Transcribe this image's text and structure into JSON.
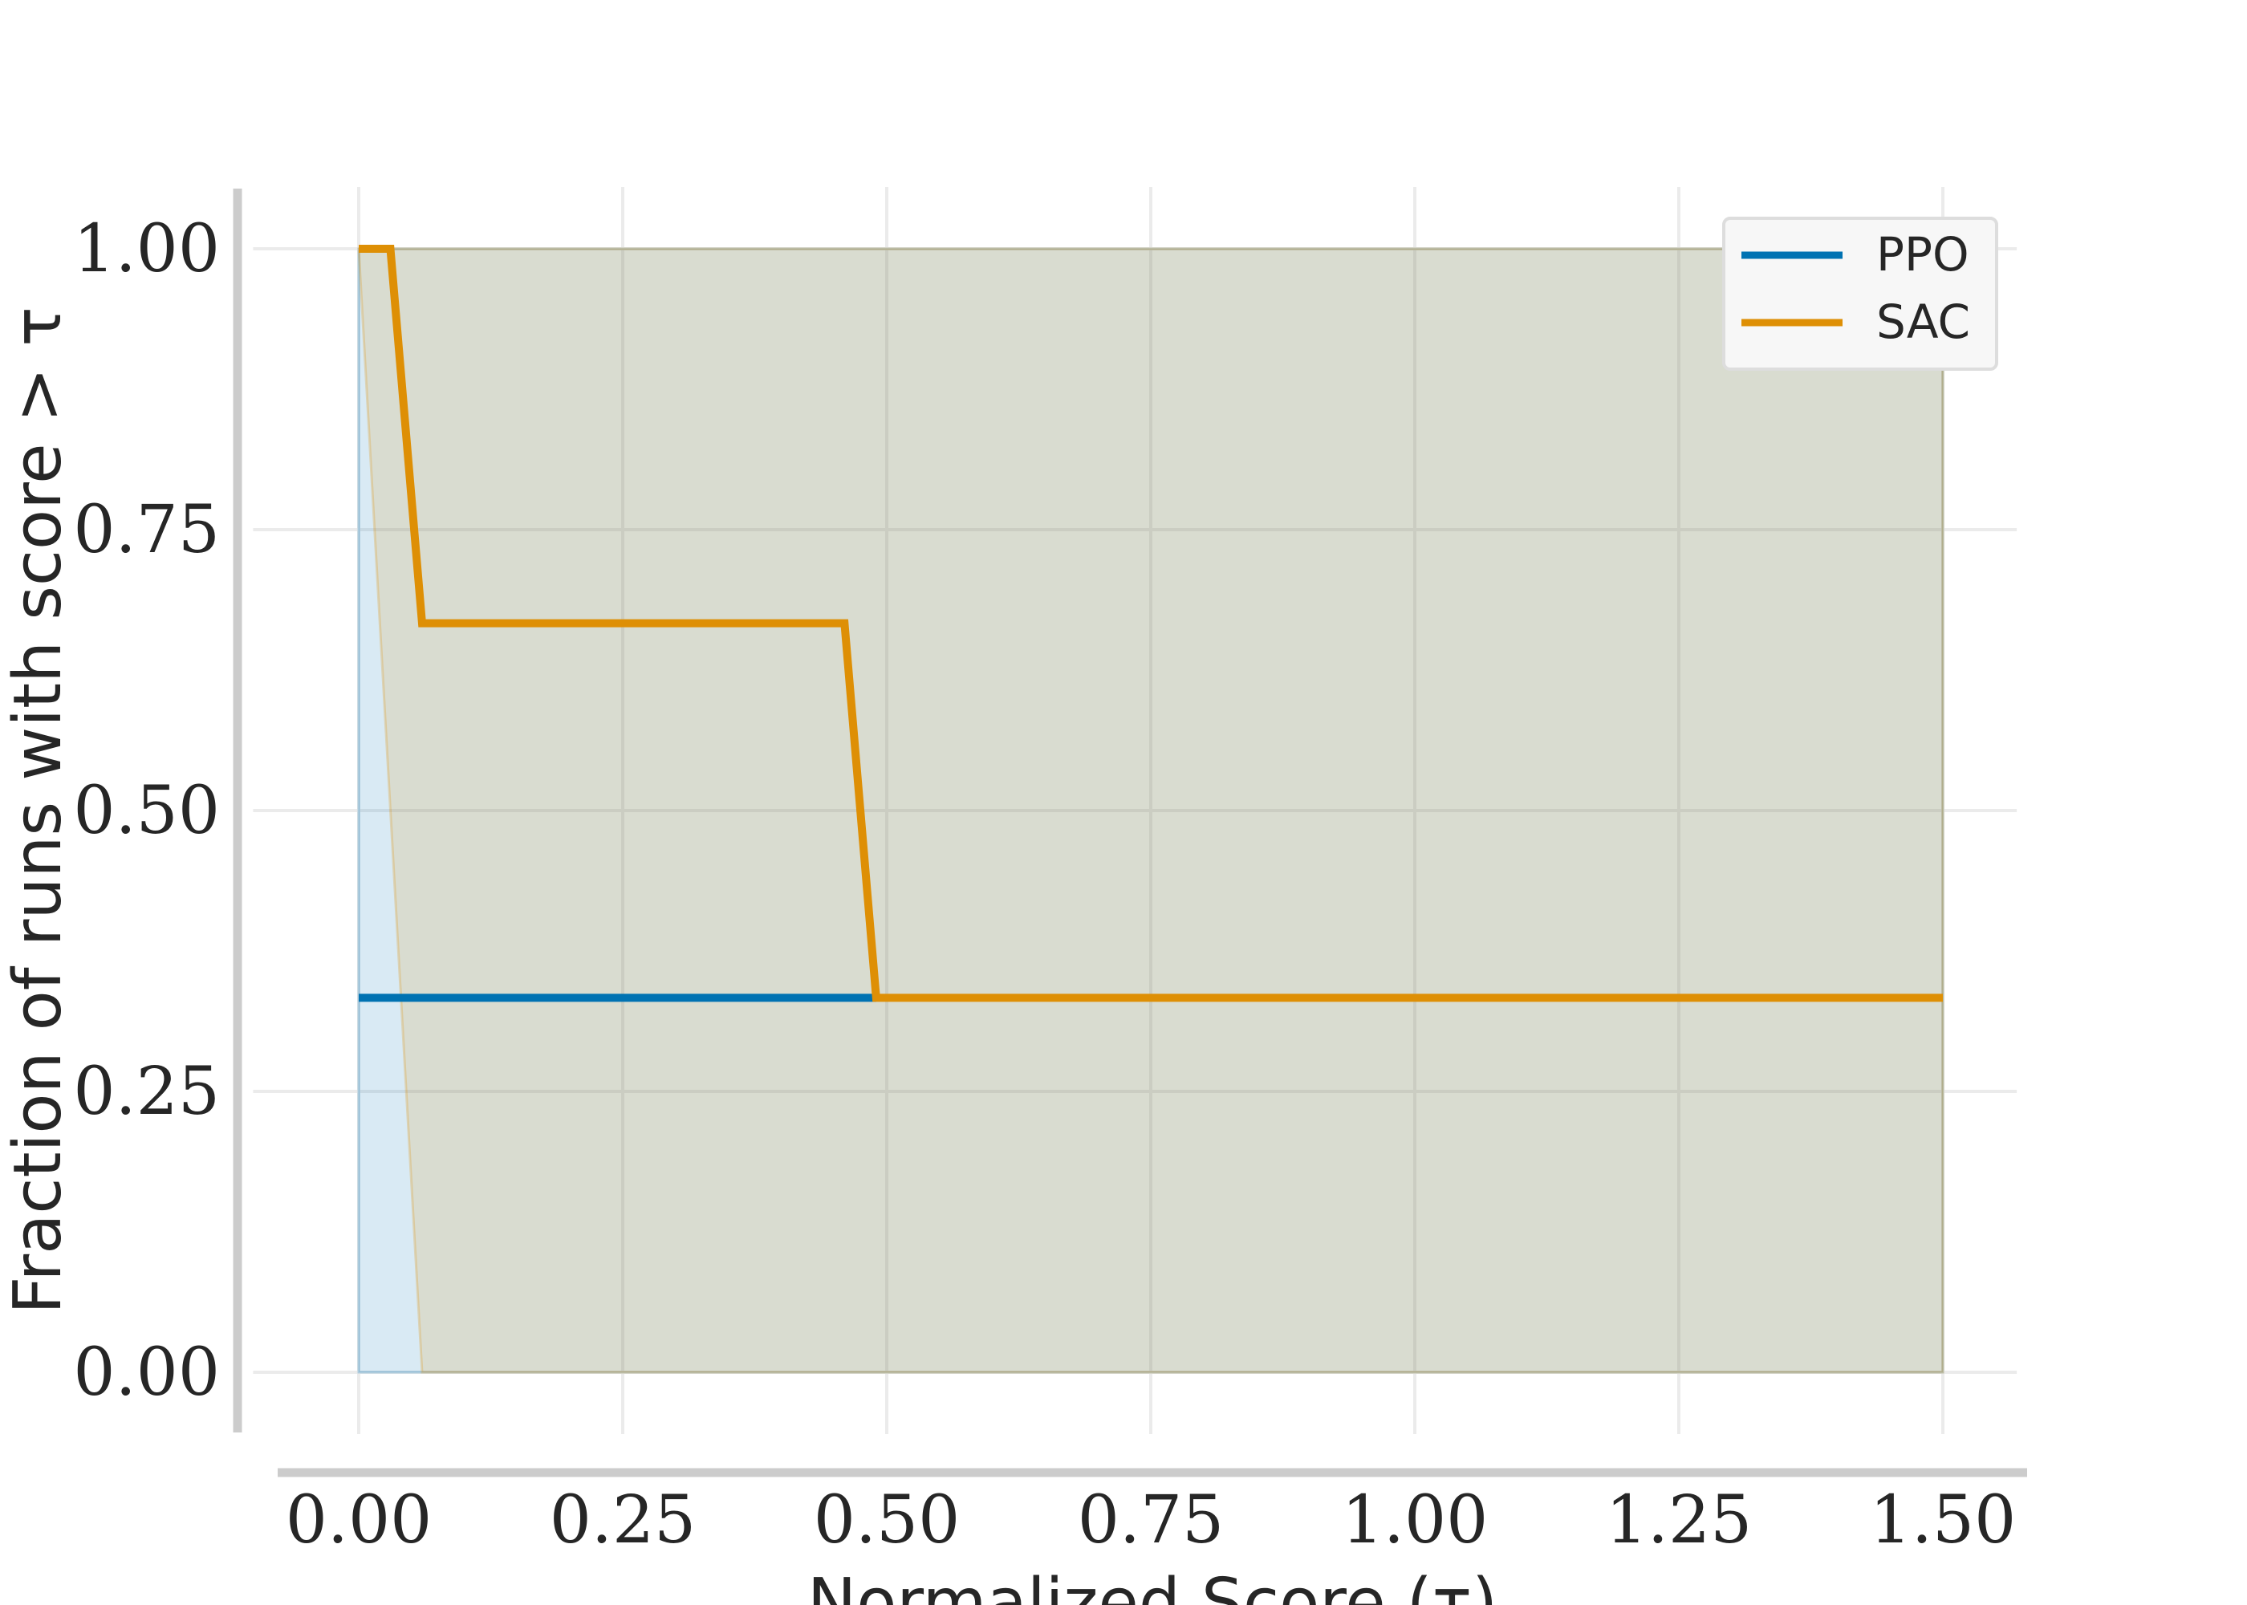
{
  "chart_data": {
    "type": "line",
    "title": "",
    "xlabel": "Normalized Score (τ)",
    "ylabel": "Fraction of runs with score > τ",
    "xlim": [
      -0.1,
      1.57
    ],
    "ylim": [
      -0.055,
      1.055
    ],
    "xticks": [
      0.0,
      0.25,
      0.5,
      0.75,
      1.0,
      1.25,
      1.5
    ],
    "xtick_labels": [
      "0.00",
      "0.25",
      "0.50",
      "0.75",
      "1.00",
      "1.25",
      "1.50"
    ],
    "yticks": [
      0.0,
      0.25,
      0.5,
      0.75,
      1.0
    ],
    "ytick_labels": [
      "0.00",
      "0.25",
      "0.50",
      "0.75",
      "1.00"
    ],
    "grid": true,
    "legend_position": "top-right",
    "series": [
      {
        "name": "PPO",
        "color": "#0072b2",
        "x": [
          0.0,
          0.49
        ],
        "y": [
          0.3333,
          0.3333
        ],
        "band_upper_x": [
          0.0,
          1.5
        ],
        "band_upper_y": [
          1.0,
          1.0
        ],
        "band_lower_x": [
          0.0,
          1.5
        ],
        "band_lower_y": [
          0.0,
          0.0
        ]
      },
      {
        "name": "SAC",
        "color": "#de8f05",
        "x": [
          0.0,
          0.03,
          0.06,
          0.46,
          0.49,
          1.5
        ],
        "y": [
          1.0,
          1.0,
          0.6667,
          0.6667,
          0.3333,
          0.3333
        ],
        "band_upper_x": [
          0.0,
          1.5
        ],
        "band_upper_y": [
          1.0,
          1.0
        ],
        "band_lower_x": [
          0.0,
          0.06,
          1.5
        ],
        "band_lower_y": [
          1.0,
          0.0,
          0.0
        ]
      }
    ]
  }
}
